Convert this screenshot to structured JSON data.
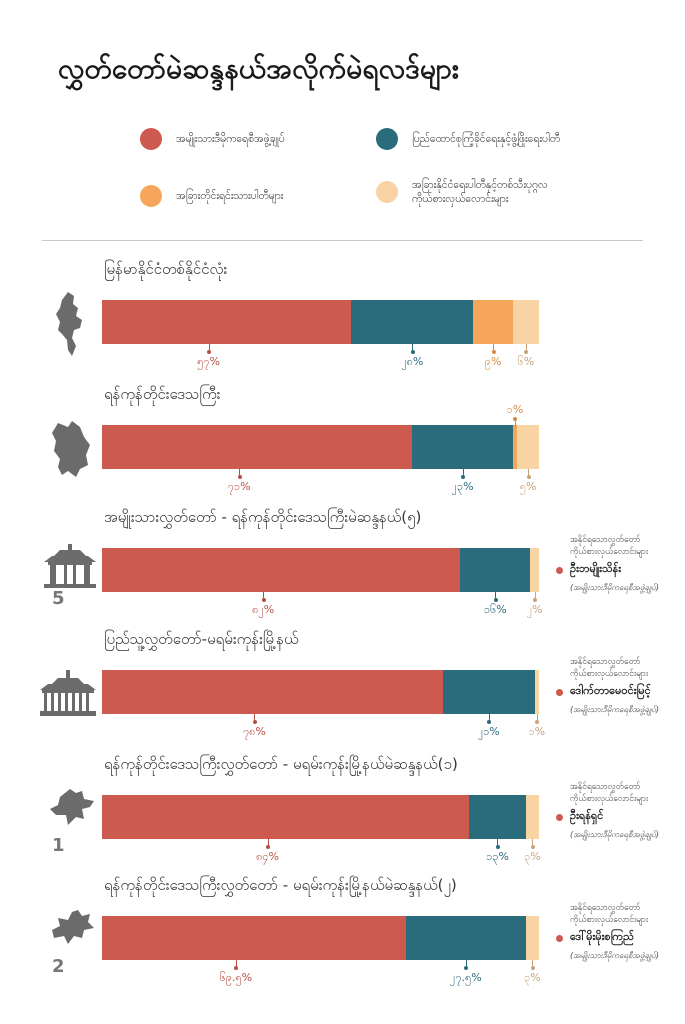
{
  "title": "လွှတ်တော်မဲဆန္ဒနယ်အလိုက်မဲရလဒ်များ",
  "colors": {
    "nld": "#CD5A4E",
    "usdp": "#2A6B7C",
    "ethnic": "#F5A65B",
    "other": "#F8D3A4"
  },
  "legend": [
    {
      "key": "nld",
      "label": "အမျိုးသားဒီမိုကရေစီအဖွဲ့ချုပ်"
    },
    {
      "key": "usdp",
      "label": "ပြည်ထောင်စုကြံ့ခိုင်ရေးနှင့်ဖွံ့ဖြိုးရေးပါတီ"
    },
    {
      "key": "ethnic",
      "label": "အခြားတိုင်းရင်းသားပါတီများ"
    },
    {
      "key": "other",
      "label": "အခြားနိုင်ငံရေးပါတီနှင့်တစ်သီးပုဂ္ဂလကိုယ်စားလှယ်လောင်းများ"
    }
  ],
  "winner_caption": "အနိုင်ရသောလွှတ်တော်ကိုယ်စားလှယ်လောင်းများ",
  "chart_data": {
    "type": "bar",
    "orientation": "horizontal",
    "stacked": true,
    "series_order": [
      "nld",
      "usdp",
      "ethnic",
      "other"
    ],
    "rows": [
      {
        "title": "မြန်မာနိုင်ငံတစ်နိုင်ငံလုံး",
        "icon": "myanmar-map-icon",
        "number": "",
        "values": [
          57,
          28,
          9,
          6
        ],
        "labels": [
          "၅၇%",
          "၂၈%",
          "၉%",
          "၆%"
        ],
        "winner": null
      },
      {
        "title": "ရန်ကုန်တိုင်းဒေသကြီး",
        "icon": "yangon-map-icon",
        "number": "",
        "values": [
          71,
          23,
          1,
          5
        ],
        "labels": [
          "၇၁%",
          "၂၃%",
          "၁%",
          "၅%"
        ],
        "winner": null
      },
      {
        "title": "အမျိုးသားလွှတ်တော် - ရန်ကုန်တိုင်းဒေသကြီးမဲဆန္ဒနယ်(၅)",
        "icon": "pagoda-gate-icon",
        "number": "5",
        "values": [
          82,
          16,
          0,
          2
        ],
        "labels": [
          "၈၂%",
          "၁၆%",
          "",
          "၂%"
        ],
        "winner": {
          "name": "ဦးဘမျိုးသိန်း",
          "party": "(အမျိုးသားဒီမိုကရေစီအဖွဲ့ချုပ်)"
        }
      },
      {
        "title": "ပြည်သူ့လွှတ်တော်-မရမ်းကုန်းမြို့နယ်",
        "icon": "pavilion-icon",
        "number": "",
        "values": [
          78,
          21,
          0,
          1
        ],
        "labels": [
          "၇၈%",
          "၂၁%",
          "",
          "၁%"
        ],
        "winner": {
          "name": "ဒေါက်တာမေဝင်းမြင့်",
          "party": "(အမျိုးသားဒီမိုကရေစီအဖွဲ့ချုပ်)"
        }
      },
      {
        "title": "ရန်ကုန်တိုင်းဒေသကြီးလွှတ်တော် - မရမ်းကုန်းမြို့နယ်မဲဆန္ဒနယ်(၁)",
        "icon": "township-map-1-icon",
        "number": "1",
        "values": [
          84,
          13,
          0,
          3
        ],
        "labels": [
          "၈၄%",
          "၁၃%",
          "",
          "၃%"
        ],
        "winner": {
          "name": "ဦးရန်ရှင်",
          "party": "(အမျိုးသားဒီမိုကရေစီအဖွဲ့ချုပ်)"
        }
      },
      {
        "title": "ရန်ကုန်တိုင်းဒေသကြီးလွှတ်တော် - မရမ်းကုန်းမြို့နယ်မဲဆန္ဒနယ်(၂)",
        "icon": "township-map-2-icon",
        "number": "2",
        "values": [
          69.5,
          27.5,
          0,
          3
        ],
        "labels": [
          "၆၉.၅%",
          "၂၇.၅%",
          "",
          "၃%"
        ],
        "winner": {
          "name": "ဒေါ်မိုးမိုးစကြည်",
          "party": "(အမျိုးသားဒီမိုကရေစီအဖွဲ့ချုပ်)"
        }
      }
    ]
  }
}
